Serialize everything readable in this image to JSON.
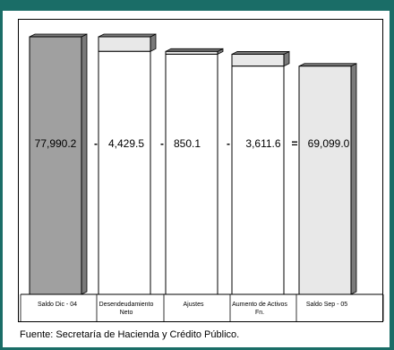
{
  "header": {
    "title": ""
  },
  "footer": {
    "source": "Fuente: Secretaría de Hacienda y Crédito Público."
  },
  "chart_data": {
    "type": "waterfall",
    "categories": [
      "Saldo Dic - 04",
      "Desendeudamiento Neto",
      "Ajustes",
      "Aumento de Activos Fn.",
      "Saldo Sep - 05"
    ],
    "category_lines": [
      [
        "Saldo Dic - 04"
      ],
      [
        "Desendeudamiento",
        "Neto"
      ],
      [
        "Ajustes"
      ],
      [
        "Aumento de Activos",
        "Fn."
      ],
      [
        "Saldo Sep - 05"
      ]
    ],
    "values": [
      77990.2,
      -4429.5,
      -850.1,
      -3611.6,
      69099.0
    ],
    "labels": [
      "77,990.2",
      "4,429.5",
      "850.1",
      "3,611.6",
      "69,099.0"
    ],
    "operators": [
      "-",
      "-",
      "-",
      "="
    ],
    "kinds": [
      "total",
      "decrease",
      "decrease",
      "decrease",
      "total"
    ],
    "colors": {
      "start_total": "#a0a0a0",
      "step": "#e8e8e8",
      "end_total": "#e8e8e8",
      "shadow": "#7a7a7a"
    },
    "title": "",
    "xlabel": "",
    "ylabel": ""
  }
}
